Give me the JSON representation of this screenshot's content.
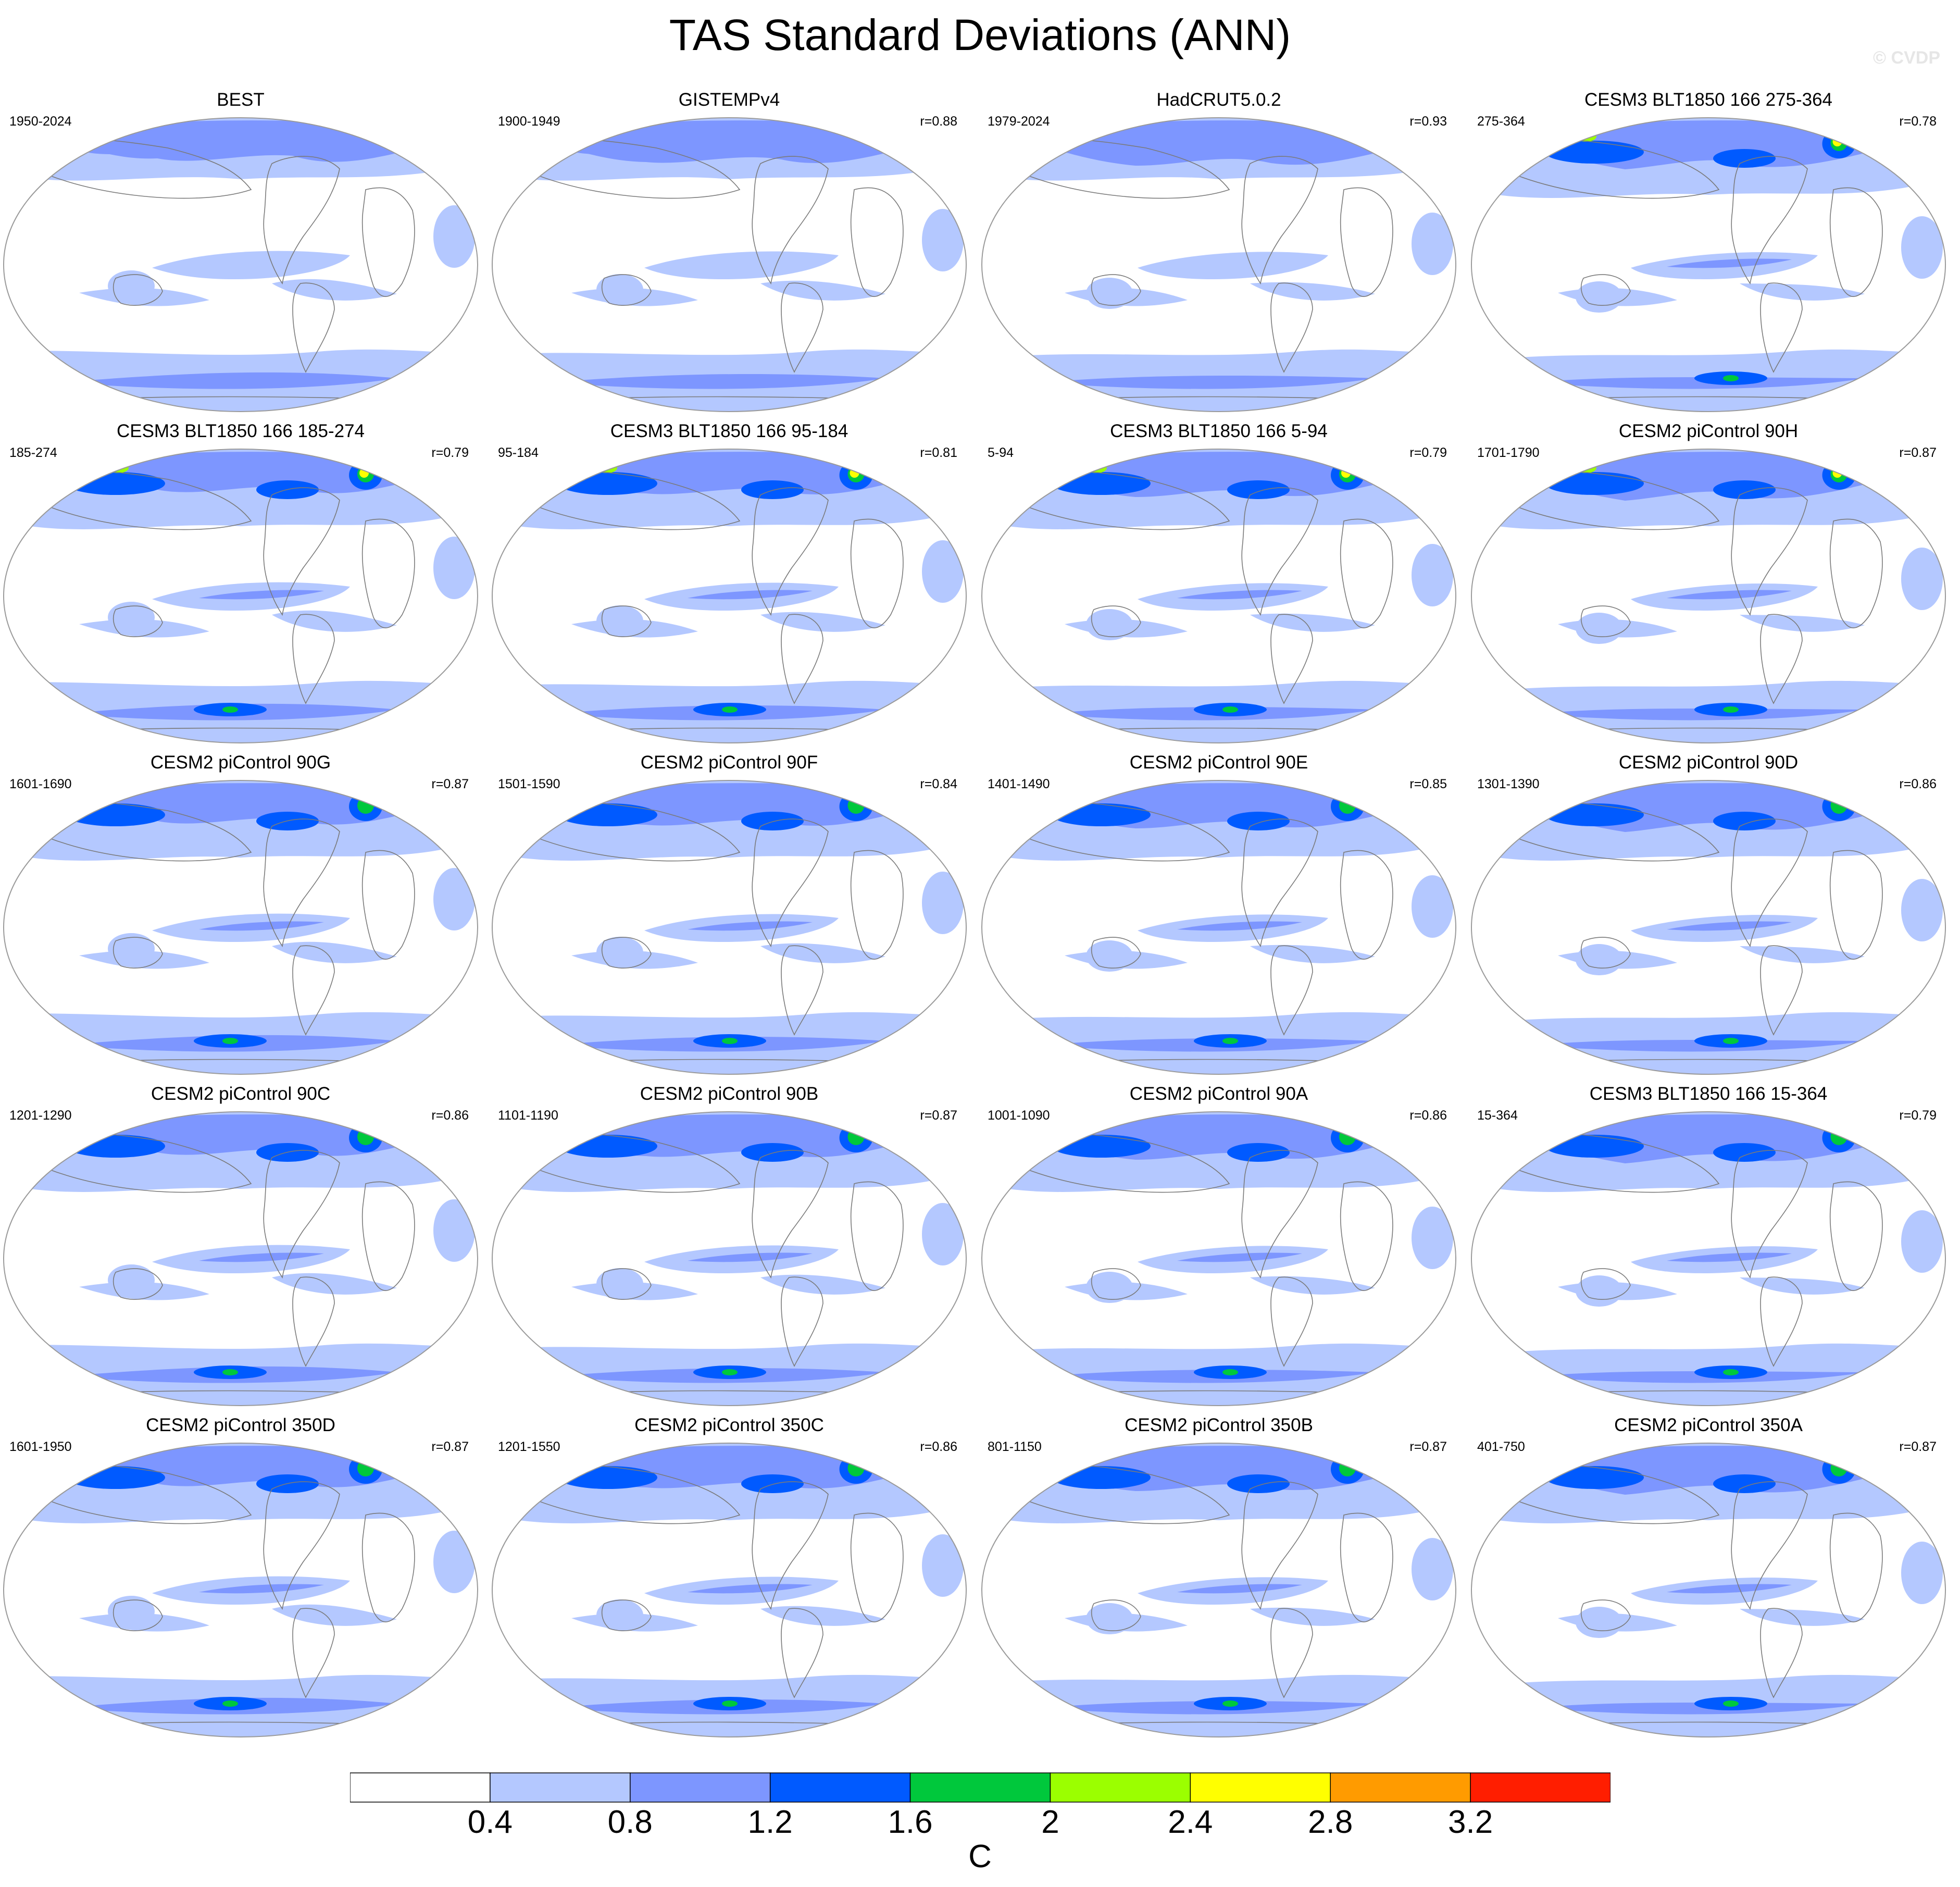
{
  "title": "TAS Standard Deviations (ANN)",
  "watermark": "© CVDP",
  "panels": [
    {
      "title": "BEST",
      "years": "1950-2024",
      "r": ""
    },
    {
      "title": "GISTEMPv4",
      "years": "1900-1949",
      "r": "r=0.88"
    },
    {
      "title": "HadCRUT5.0.2",
      "years": "1979-2024",
      "r": "r=0.93"
    },
    {
      "title": "CESM3 BLT1850 166 275-364",
      "years": "275-364",
      "r": "r=0.78"
    },
    {
      "title": "CESM3 BLT1850 166 185-274",
      "years": "185-274",
      "r": "r=0.79"
    },
    {
      "title": "CESM3 BLT1850 166 95-184",
      "years": "95-184",
      "r": "r=0.81"
    },
    {
      "title": "CESM3 BLT1850 166 5-94",
      "years": "5-94",
      "r": "r=0.79"
    },
    {
      "title": "CESM2 piControl 90H",
      "years": "1701-1790",
      "r": "r=0.87"
    },
    {
      "title": "CESM2 piControl 90G",
      "years": "1601-1690",
      "r": "r=0.87"
    },
    {
      "title": "CESM2 piControl 90F",
      "years": "1501-1590",
      "r": "r=0.84"
    },
    {
      "title": "CESM2 piControl 90E",
      "years": "1401-1490",
      "r": "r=0.85"
    },
    {
      "title": "CESM2 piControl 90D",
      "years": "1301-1390",
      "r": "r=0.86"
    },
    {
      "title": "CESM2 piControl 90C",
      "years": "1201-1290",
      "r": "r=0.86"
    },
    {
      "title": "CESM2 piControl 90B",
      "years": "1101-1190",
      "r": "r=0.87"
    },
    {
      "title": "CESM2 piControl 90A",
      "years": "1001-1090",
      "r": "r=0.86"
    },
    {
      "title": "CESM3 BLT1850 166 15-364",
      "years": "15-364",
      "r": "r=0.79"
    },
    {
      "title": "CESM2 piControl 350D",
      "years": "1601-1950",
      "r": "r=0.87"
    },
    {
      "title": "CESM2 piControl 350C",
      "years": "1201-1550",
      "r": "r=0.86"
    },
    {
      "title": "CESM2 piControl 350B",
      "years": "801-1150",
      "r": "r=0.87"
    },
    {
      "title": "CESM2 piControl 350A",
      "years": "401-750",
      "r": "r=0.87"
    }
  ],
  "colorbar": {
    "colors": [
      "#ffffff",
      "#b4c8ff",
      "#7d96ff",
      "#005aff",
      "#00c83c",
      "#9bff00",
      "#ffff00",
      "#ff9b00",
      "#ff1e00"
    ],
    "labels": [
      "0.4",
      "0.8",
      "1.2",
      "1.6",
      "2",
      "2.4",
      "2.8",
      "3.2"
    ],
    "units": "C"
  },
  "map_colors": {
    "land_outline": "#7a7a7a",
    "globe_outline": "#9a9a9a"
  }
}
